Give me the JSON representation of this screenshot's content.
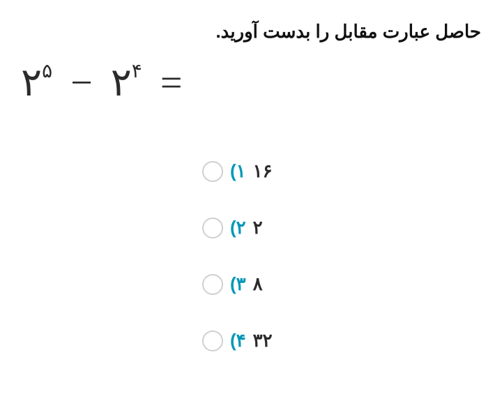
{
  "question": {
    "text": "حاصل عبارت مقابل را بدست آورید.",
    "text_color": "#111111",
    "text_fontsize": 26,
    "text_fontweight": 700
  },
  "expression": {
    "base1": "۲",
    "exp1": "۵",
    "operator": "−",
    "base2": "۲",
    "exp2": "۴",
    "equals": "=",
    "color": "#2b2b2b",
    "fontsize": 56,
    "sup_fontsize": 28
  },
  "options": [
    {
      "number": "۱)",
      "value": "۱۶"
    },
    {
      "number": "۲)",
      "value": "۲"
    },
    {
      "number": "۳)",
      "value": "۸"
    },
    {
      "number": "۴)",
      "value": "۳۲"
    }
  ],
  "styling": {
    "option_number_color": "#0097b8",
    "option_value_color": "#2b2b2b",
    "radio_border_color": "#d0d0d0",
    "radio_size": 30,
    "background_color": "#ffffff",
    "option_fontsize": 26,
    "option_fontweight": 700,
    "option_gap": 50
  }
}
